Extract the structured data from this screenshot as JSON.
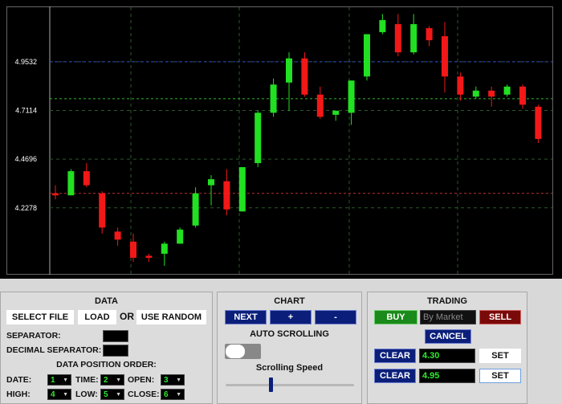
{
  "chart_data": {
    "type": "candlestick",
    "y_ticks": [
      "4.9532",
      "4.7114",
      "4.4696",
      "4.2278"
    ],
    "y_tick_values": [
      4.9532,
      4.7114,
      4.4696,
      4.2278
    ],
    "ylim": [
      3.9,
      5.2
    ],
    "price_lines": [
      {
        "value": 4.9532,
        "color": "#3040d0"
      },
      {
        "value": 4.77,
        "color": "#2eb82e"
      },
      {
        "value": 4.3,
        "color": "#c03030"
      }
    ],
    "colors": {
      "up": "#22e022",
      "down": "#f21818"
    },
    "candles": [
      {
        "o": 4.3,
        "c": 4.29,
        "h": 4.34,
        "l": 4.27
      },
      {
        "o": 4.29,
        "c": 4.41,
        "h": 4.42,
        "l": 4.29
      },
      {
        "o": 4.41,
        "c": 4.34,
        "h": 4.45,
        "l": 4.33
      },
      {
        "o": 4.3,
        "c": 4.13,
        "h": 4.31,
        "l": 4.1
      },
      {
        "o": 4.11,
        "c": 4.07,
        "h": 4.13,
        "l": 4.04
      },
      {
        "o": 4.06,
        "c": 3.98,
        "h": 4.1,
        "l": 3.96
      },
      {
        "o": 3.99,
        "c": 3.98,
        "h": 4.0,
        "l": 3.96
      },
      {
        "o": 4.0,
        "c": 4.05,
        "h": 4.06,
        "l": 3.94
      },
      {
        "o": 4.05,
        "c": 4.12,
        "h": 4.13,
        "l": 4.05
      },
      {
        "o": 4.14,
        "c": 4.3,
        "h": 4.33,
        "l": 4.13
      },
      {
        "o": 4.34,
        "c": 4.37,
        "h": 4.39,
        "l": 4.24
      },
      {
        "o": 4.36,
        "c": 4.22,
        "h": 4.42,
        "l": 4.19
      },
      {
        "o": 4.21,
        "c": 4.43,
        "h": 4.43,
        "l": 4.21
      },
      {
        "o": 4.45,
        "c": 4.7,
        "h": 4.71,
        "l": 4.43
      },
      {
        "o": 4.7,
        "c": 4.84,
        "h": 4.87,
        "l": 4.68
      },
      {
        "o": 4.85,
        "c": 4.97,
        "h": 5.0,
        "l": 4.71
      },
      {
        "o": 4.97,
        "c": 4.79,
        "h": 5.0,
        "l": 4.78
      },
      {
        "o": 4.79,
        "c": 4.68,
        "h": 4.83,
        "l": 4.67
      },
      {
        "o": 4.69,
        "c": 4.71,
        "h": 4.71,
        "l": 4.66
      },
      {
        "o": 4.7,
        "c": 4.86,
        "h": 4.86,
        "l": 4.64
      },
      {
        "o": 4.88,
        "c": 5.09,
        "h": 5.09,
        "l": 4.86
      },
      {
        "o": 5.1,
        "c": 5.16,
        "h": 5.19,
        "l": 5.09
      },
      {
        "o": 5.14,
        "c": 5.0,
        "h": 5.19,
        "l": 4.98
      },
      {
        "o": 5.0,
        "c": 5.14,
        "h": 5.19,
        "l": 4.99
      },
      {
        "o": 5.12,
        "c": 5.06,
        "h": 5.13,
        "l": 5.03
      },
      {
        "o": 5.08,
        "c": 4.88,
        "h": 5.15,
        "l": 4.8
      },
      {
        "o": 4.88,
        "c": 4.79,
        "h": 4.9,
        "l": 4.76
      },
      {
        "o": 4.78,
        "c": 4.81,
        "h": 4.83,
        "l": 4.77
      },
      {
        "o": 4.81,
        "c": 4.78,
        "h": 4.83,
        "l": 4.73
      },
      {
        "o": 4.79,
        "c": 4.83,
        "h": 4.84,
        "l": 4.78
      },
      {
        "o": 4.83,
        "c": 4.74,
        "h": 4.84,
        "l": 4.72
      },
      {
        "o": 4.73,
        "c": 4.57,
        "h": 4.74,
        "l": 4.55
      }
    ]
  },
  "data_panel": {
    "title": "DATA",
    "select_file": "SELECT FILE",
    "load": "LOAD",
    "or": "OR",
    "use_random": "USE RANDOM",
    "separator_label": "SEPARATOR:",
    "decimal_separator_label": "DECIMAL SEPARATOR:",
    "position_order_title": "DATA POSITION ORDER:",
    "date_label": "DATE:",
    "date_value": "1",
    "time_label": "TIME:",
    "time_value": "2",
    "open_label": "OPEN:",
    "open_value": "3",
    "high_label": "HIGH:",
    "high_value": "4",
    "low_label": "LOW:",
    "low_value": "5",
    "close_label": "CLOSE:",
    "close_value": "6"
  },
  "chart_panel": {
    "title": "CHART",
    "next": "NEXT",
    "plus": "+",
    "minus": "-",
    "auto_scrolling": "AUTO SCROLLING",
    "scrolling_speed": "Scrolling Speed",
    "speed_fraction": 0.35,
    "auto_scrolling_on": false
  },
  "trading_panel": {
    "title": "TRADING",
    "buy": "BUY",
    "order_type_placeholder": "By Market",
    "sell": "SELL",
    "cancel": "CANCEL",
    "clear_1": "CLEAR",
    "value_1": "4.30",
    "set_1": "SET",
    "clear_2": "CLEAR",
    "value_2": "4.95",
    "set_2": "SET"
  }
}
